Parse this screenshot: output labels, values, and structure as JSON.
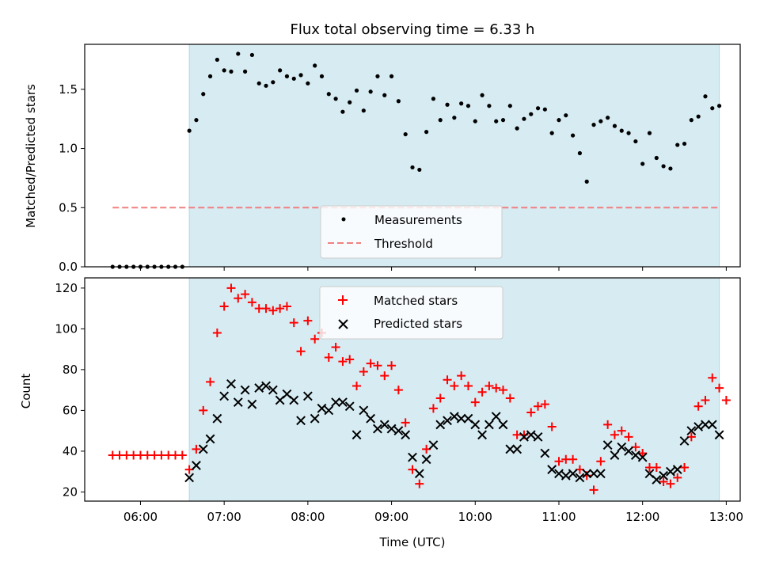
{
  "chart_data": [
    {
      "type": "scatter",
      "title": "Flux total observing time = 6.33 h",
      "xlabel": "",
      "ylabel": "Matched/Predicted stars",
      "xlim": [
        "05:20",
        "13:10"
      ],
      "ylim": [
        0,
        1.88
      ],
      "yticks": [
        0.0,
        0.5,
        1.0,
        1.5
      ],
      "yticklabels": [
        "0.0",
        "0.5",
        "1.0",
        "1.5"
      ],
      "shaded_interval": [
        "06:35",
        "12:55"
      ],
      "shade_color": "#add8e6",
      "legend": {
        "placement": "lower center",
        "entries": [
          "Measurements",
          "Threshold"
        ]
      },
      "series": [
        {
          "name": "Measurements",
          "marker": "dot",
          "color": "#000000",
          "points": [
            [
              "05:40",
              0
            ],
            [
              "05:45",
              0
            ],
            [
              "05:50",
              0
            ],
            [
              "05:55",
              0
            ],
            [
              "06:00",
              0
            ],
            [
              "06:05",
              0
            ],
            [
              "06:10",
              0
            ],
            [
              "06:15",
              0
            ],
            [
              "06:20",
              0
            ],
            [
              "06:25",
              0
            ],
            [
              "06:30",
              0
            ],
            [
              "06:35",
              1.15
            ],
            [
              "06:40",
              1.24
            ],
            [
              "06:45",
              1.46
            ],
            [
              "06:50",
              1.61
            ],
            [
              "06:55",
              1.75
            ],
            [
              "07:00",
              1.66
            ],
            [
              "07:05",
              1.65
            ],
            [
              "07:10",
              1.8
            ],
            [
              "07:15",
              1.65
            ],
            [
              "07:20",
              1.79
            ],
            [
              "07:25",
              1.55
            ],
            [
              "07:30",
              1.53
            ],
            [
              "07:35",
              1.56
            ],
            [
              "07:40",
              1.66
            ],
            [
              "07:45",
              1.61
            ],
            [
              "07:50",
              1.59
            ],
            [
              "07:55",
              1.62
            ],
            [
              "08:00",
              1.55
            ],
            [
              "08:05",
              1.7
            ],
            [
              "08:10",
              1.61
            ],
            [
              "08:15",
              1.46
            ],
            [
              "08:20",
              1.42
            ],
            [
              "08:25",
              1.31
            ],
            [
              "08:30",
              1.39
            ],
            [
              "08:35",
              1.49
            ],
            [
              "08:40",
              1.32
            ],
            [
              "08:45",
              1.48
            ],
            [
              "08:50",
              1.61
            ],
            [
              "08:55",
              1.45
            ],
            [
              "09:00",
              1.61
            ],
            [
              "09:05",
              1.4
            ],
            [
              "09:10",
              1.12
            ],
            [
              "09:15",
              0.84
            ],
            [
              "09:20",
              0.82
            ],
            [
              "09:25",
              1.14
            ],
            [
              "09:30",
              1.42
            ],
            [
              "09:35",
              1.24
            ],
            [
              "09:40",
              1.37
            ],
            [
              "09:45",
              1.26
            ],
            [
              "09:50",
              1.38
            ],
            [
              "09:55",
              1.36
            ],
            [
              "10:00",
              1.23
            ],
            [
              "10:05",
              1.45
            ],
            [
              "10:10",
              1.36
            ],
            [
              "10:15",
              1.23
            ],
            [
              "10:20",
              1.24
            ],
            [
              "10:25",
              1.36
            ],
            [
              "10:30",
              1.17
            ],
            [
              "10:35",
              1.25
            ],
            [
              "10:40",
              1.29
            ],
            [
              "10:45",
              1.34
            ],
            [
              "10:50",
              1.33
            ],
            [
              "10:55",
              1.13
            ],
            [
              "11:00",
              1.24
            ],
            [
              "11:05",
              1.28
            ],
            [
              "11:10",
              1.11
            ],
            [
              "11:15",
              0.96
            ],
            [
              "11:20",
              0.72
            ],
            [
              "11:25",
              1.2
            ],
            [
              "11:30",
              1.23
            ],
            [
              "11:35",
              1.26
            ],
            [
              "11:40",
              1.19
            ],
            [
              "11:45",
              1.15
            ],
            [
              "11:50",
              1.13
            ],
            [
              "11:55",
              1.06
            ],
            [
              "12:00",
              0.87
            ],
            [
              "12:05",
              1.13
            ],
            [
              "12:10",
              0.92
            ],
            [
              "12:15",
              0.85
            ],
            [
              "12:20",
              0.83
            ],
            [
              "12:25",
              1.03
            ],
            [
              "12:30",
              1.04
            ],
            [
              "12:35",
              1.24
            ],
            [
              "12:40",
              1.27
            ],
            [
              "12:45",
              1.44
            ],
            [
              "12:50",
              1.34
            ],
            [
              "12:55",
              1.36
            ]
          ]
        },
        {
          "name": "Threshold",
          "style": "dashed",
          "color": "#f08080",
          "points": [
            [
              "05:40",
              0.5
            ],
            [
              "12:55",
              0.5
            ]
          ]
        }
      ]
    },
    {
      "type": "scatter",
      "title": "",
      "xlabel": "Time (UTC)",
      "ylabel": "Count",
      "xlim": [
        "05:20",
        "13:10"
      ],
      "ylim": [
        15.5,
        125
      ],
      "yticks": [
        20,
        40,
        60,
        80,
        100,
        120
      ],
      "yticklabels": [
        "20",
        "40",
        "60",
        "80",
        "100",
        "120"
      ],
      "xticks": [
        "06:00",
        "07:00",
        "08:00",
        "09:00",
        "10:00",
        "11:00",
        "12:00",
        "13:00"
      ],
      "shaded_interval": [
        "06:35",
        "12:55"
      ],
      "shade_color": "#add8e6",
      "legend": {
        "placement": "upper center",
        "entries": [
          "Matched stars",
          "Predicted stars"
        ]
      },
      "series": [
        {
          "name": "Matched stars",
          "marker": "plus",
          "color": "#ff0000",
          "points": [
            [
              "05:40",
              38
            ],
            [
              "05:45",
              38
            ],
            [
              "05:50",
              38
            ],
            [
              "05:55",
              38
            ],
            [
              "06:00",
              38
            ],
            [
              "06:05",
              38
            ],
            [
              "06:10",
              38
            ],
            [
              "06:15",
              38
            ],
            [
              "06:20",
              38
            ],
            [
              "06:25",
              38
            ],
            [
              "06:30",
              38
            ],
            [
              "06:35",
              31
            ],
            [
              "06:40",
              41
            ],
            [
              "06:45",
              60
            ],
            [
              "06:50",
              74
            ],
            [
              "06:55",
              98
            ],
            [
              "07:00",
              111
            ],
            [
              "07:05",
              120
            ],
            [
              "07:10",
              115
            ],
            [
              "07:15",
              117
            ],
            [
              "07:20",
              113
            ],
            [
              "07:25",
              110
            ],
            [
              "07:30",
              110
            ],
            [
              "07:35",
              109
            ],
            [
              "07:40",
              110
            ],
            [
              "07:45",
              111
            ],
            [
              "07:50",
              103
            ],
            [
              "07:55",
              89
            ],
            [
              "08:00",
              104
            ],
            [
              "08:05",
              95
            ],
            [
              "08:10",
              98
            ],
            [
              "08:15",
              86
            ],
            [
              "08:20",
              91
            ],
            [
              "08:25",
              84
            ],
            [
              "08:30",
              85
            ],
            [
              "08:35",
              72
            ],
            [
              "08:40",
              79
            ],
            [
              "08:45",
              83
            ],
            [
              "08:50",
              82
            ],
            [
              "08:55",
              77
            ],
            [
              "09:00",
              82
            ],
            [
              "09:05",
              70
            ],
            [
              "09:10",
              54
            ],
            [
              "09:15",
              31
            ],
            [
              "09:20",
              24
            ],
            [
              "09:25",
              41
            ],
            [
              "09:30",
              61
            ],
            [
              "09:35",
              66
            ],
            [
              "09:40",
              75
            ],
            [
              "09:45",
              72
            ],
            [
              "09:50",
              77
            ],
            [
              "09:55",
              72
            ],
            [
              "10:00",
              64
            ],
            [
              "10:05",
              69
            ],
            [
              "10:10",
              72
            ],
            [
              "10:15",
              71
            ],
            [
              "10:20",
              70
            ],
            [
              "10:25",
              66
            ],
            [
              "10:30",
              48
            ],
            [
              "10:35",
              48
            ],
            [
              "10:40",
              59
            ],
            [
              "10:45",
              62
            ],
            [
              "10:50",
              63
            ],
            [
              "10:55",
              52
            ],
            [
              "11:00",
              35
            ],
            [
              "11:05",
              36
            ],
            [
              "11:10",
              36
            ],
            [
              "11:15",
              31
            ],
            [
              "11:20",
              28
            ],
            [
              "11:25",
              21
            ],
            [
              "11:30",
              35
            ],
            [
              "11:35",
              53
            ],
            [
              "11:40",
              48
            ],
            [
              "11:45",
              50
            ],
            [
              "11:50",
              47
            ],
            [
              "11:55",
              42
            ],
            [
              "12:00",
              39
            ],
            [
              "12:05",
              32
            ],
            [
              "12:10",
              32
            ],
            [
              "12:15",
              25
            ],
            [
              "12:20",
              24
            ],
            [
              "12:25",
              27
            ],
            [
              "12:30",
              32
            ],
            [
              "12:35",
              47
            ],
            [
              "12:40",
              62
            ],
            [
              "12:45",
              65
            ],
            [
              "12:50",
              76
            ],
            [
              "12:55",
              71
            ],
            [
              "13:00",
              65
            ]
          ]
        },
        {
          "name": "Predicted stars",
          "marker": "x",
          "color": "#000000",
          "points": [
            [
              "06:35",
              27
            ],
            [
              "06:40",
              33
            ],
            [
              "06:45",
              41
            ],
            [
              "06:50",
              46
            ],
            [
              "06:55",
              56
            ],
            [
              "07:00",
              67
            ],
            [
              "07:05",
              73
            ],
            [
              "07:10",
              64
            ],
            [
              "07:15",
              70
            ],
            [
              "07:20",
              63
            ],
            [
              "07:25",
              71
            ],
            [
              "07:30",
              72
            ],
            [
              "07:35",
              70
            ],
            [
              "07:40",
              65
            ],
            [
              "07:45",
              68
            ],
            [
              "07:50",
              65
            ],
            [
              "07:55",
              55
            ],
            [
              "08:00",
              67
            ],
            [
              "08:05",
              56
            ],
            [
              "08:10",
              61
            ],
            [
              "08:15",
              60
            ],
            [
              "08:20",
              64
            ],
            [
              "08:25",
              64
            ],
            [
              "08:30",
              62
            ],
            [
              "08:35",
              48
            ],
            [
              "08:40",
              60
            ],
            [
              "08:45",
              56
            ],
            [
              "08:50",
              51
            ],
            [
              "08:55",
              53
            ],
            [
              "09:00",
              51
            ],
            [
              "09:05",
              50
            ],
            [
              "09:10",
              48
            ],
            [
              "09:15",
              37
            ],
            [
              "09:20",
              29
            ],
            [
              "09:25",
              36
            ],
            [
              "09:30",
              43
            ],
            [
              "09:35",
              53
            ],
            [
              "09:40",
              55
            ],
            [
              "09:45",
              57
            ],
            [
              "09:50",
              56
            ],
            [
              "09:55",
              56
            ],
            [
              "10:00",
              53
            ],
            [
              "10:05",
              48
            ],
            [
              "10:10",
              53
            ],
            [
              "10:15",
              57
            ],
            [
              "10:20",
              53
            ],
            [
              "10:25",
              41
            ],
            [
              "10:30",
              41
            ],
            [
              "10:35",
              47
            ],
            [
              "10:40",
              48
            ],
            [
              "10:45",
              47
            ],
            [
              "10:50",
              39
            ],
            [
              "10:55",
              31
            ],
            [
              "11:00",
              29
            ],
            [
              "11:05",
              28
            ],
            [
              "11:10",
              29
            ],
            [
              "11:15",
              27
            ],
            [
              "11:20",
              29
            ],
            [
              "11:25",
              29
            ],
            [
              "11:30",
              29
            ],
            [
              "11:35",
              43
            ],
            [
              "11:40",
              38
            ],
            [
              "11:45",
              42
            ],
            [
              "11:50",
              40
            ],
            [
              "11:55",
              38
            ],
            [
              "12:00",
              37
            ],
            [
              "12:05",
              29
            ],
            [
              "12:10",
              26
            ],
            [
              "12:15",
              28
            ],
            [
              "12:20",
              30
            ],
            [
              "12:25",
              31
            ],
            [
              "12:30",
              45
            ],
            [
              "12:35",
              50
            ],
            [
              "12:40",
              52
            ],
            [
              "12:45",
              53
            ],
            [
              "12:50",
              53
            ],
            [
              "12:55",
              48
            ]
          ]
        }
      ]
    }
  ]
}
